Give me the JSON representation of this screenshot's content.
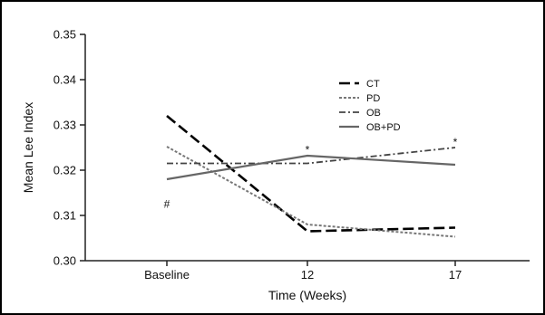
{
  "chart_data": {
    "type": "line",
    "title": "",
    "xlabel": "Time (Weeks)",
    "ylabel": "Mean Lee Index",
    "categories": [
      "Baseline",
      "12",
      "17"
    ],
    "ylim": [
      0.3,
      0.35
    ],
    "yticks": [
      "0.30",
      "0.31",
      "0.32",
      "0.33",
      "0.34",
      "0.35"
    ],
    "legend_position": "top-right",
    "grid": false,
    "series": [
      {
        "name": "CT",
        "values": [
          0.332,
          0.3065,
          0.3073
        ],
        "style": "long-dash",
        "color": "#000000"
      },
      {
        "name": "PD",
        "values": [
          0.3252,
          0.308,
          0.3053
        ],
        "style": "dotted",
        "color": "#777777"
      },
      {
        "name": "OB",
        "values": [
          0.3215,
          0.3215,
          0.325
        ],
        "style": "dash-dot",
        "color": "#444444"
      },
      {
        "name": "OB+PD",
        "values": [
          0.318,
          0.3232,
          0.3212
        ],
        "style": "solid",
        "color": "#666666"
      }
    ],
    "annotations": [
      {
        "text": "#",
        "x": "Baseline",
        "y": 0.3125
      },
      {
        "text": "*",
        "x": "12",
        "y": 0.3245
      },
      {
        "text": "*",
        "x": "17",
        "y": 0.3262
      }
    ]
  }
}
